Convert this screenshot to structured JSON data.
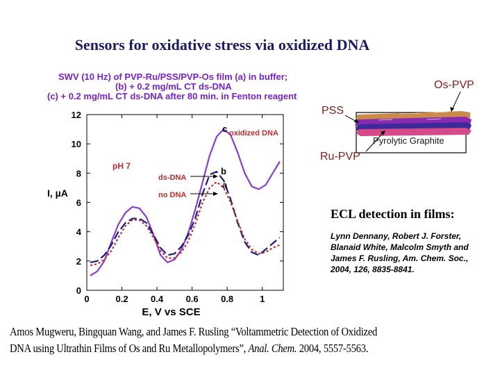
{
  "slide": {
    "title": "Sensors for oxidative stress via oxidized DNA"
  },
  "chart_title": {
    "line1": "SWV (10 Hz) of PVP-Ru/PSS/PVP-Os film (a) in buffer;",
    "line2": "(b)  + 0.2 mg/mL CT ds-DNA",
    "line3": "(c) + 0.2 mg/mL CT ds-DNA after 80 min. in Fenton reagent"
  },
  "chart_data": {
    "type": "line",
    "xlabel": "E, V vs SCE",
    "ylabel": "I, µA",
    "xlim": [
      0,
      1.12
    ],
    "ylim": [
      0,
      12
    ],
    "x_ticks": [
      "0",
      "0.2",
      "0.4",
      "0.6",
      "0.8",
      "1"
    ],
    "y_ticks": [
      "0",
      "2",
      "4",
      "6",
      "8",
      "10",
      "12"
    ],
    "grid": false,
    "series": [
      {
        "name": "oxidized DNA",
        "label": "c",
        "color": "#8a3ad6",
        "style": "solid",
        "x": [
          0.02,
          0.06,
          0.1,
          0.14,
          0.18,
          0.22,
          0.26,
          0.3,
          0.34,
          0.38,
          0.42,
          0.46,
          0.5,
          0.54,
          0.58,
          0.62,
          0.66,
          0.7,
          0.74,
          0.78,
          0.82,
          0.86,
          0.9,
          0.94,
          0.98,
          1.02,
          1.06,
          1.1
        ],
        "y": [
          1.0,
          1.3,
          2.0,
          3.3,
          4.5,
          5.3,
          5.7,
          5.6,
          5.0,
          3.8,
          2.4,
          1.9,
          2.1,
          2.8,
          4.0,
          5.6,
          7.4,
          9.2,
          10.5,
          11.0,
          10.6,
          9.4,
          8.0,
          7.1,
          6.9,
          7.2,
          8.0,
          8.8
        ]
      },
      {
        "name": "ds-DNA",
        "label": "b",
        "color": "#1a1a80",
        "style": "dashed",
        "x": [
          0.02,
          0.06,
          0.1,
          0.14,
          0.18,
          0.22,
          0.26,
          0.3,
          0.34,
          0.38,
          0.42,
          0.46,
          0.5,
          0.54,
          0.58,
          0.62,
          0.66,
          0.7,
          0.74,
          0.78,
          0.82,
          0.86,
          0.9,
          0.94,
          0.98,
          1.02,
          1.06,
          1.1
        ],
        "y": [
          1.9,
          2.0,
          2.4,
          3.1,
          4.0,
          4.6,
          4.9,
          4.9,
          4.6,
          3.8,
          2.9,
          2.4,
          2.5,
          3.0,
          3.8,
          5.0,
          6.6,
          7.9,
          8.1,
          7.5,
          6.2,
          4.6,
          3.3,
          2.6,
          2.4,
          2.8,
          3.2,
          3.6
        ]
      },
      {
        "name": "no DNA",
        "label": "a",
        "color": "#cc2a2a",
        "style": "dotted",
        "x": [
          0.02,
          0.06,
          0.1,
          0.14,
          0.18,
          0.22,
          0.26,
          0.3,
          0.34,
          0.38,
          0.42,
          0.46,
          0.5,
          0.54,
          0.58,
          0.62,
          0.66,
          0.7,
          0.74,
          0.78,
          0.82,
          0.86,
          0.9,
          0.94,
          0.98,
          1.02,
          1.06,
          1.1
        ],
        "y": [
          1.7,
          1.8,
          2.1,
          2.7,
          3.6,
          4.4,
          4.8,
          4.8,
          4.4,
          3.6,
          2.7,
          2.2,
          2.2,
          2.6,
          3.4,
          4.6,
          6.0,
          7.0,
          7.4,
          7.0,
          6.0,
          4.7,
          3.5,
          2.8,
          2.5,
          2.6,
          2.9,
          3.1
        ]
      }
    ],
    "annotations": {
      "ph": "pH 7",
      "ds_dna": "ds-DNA",
      "no_dna": "no DNA",
      "oxidized": "oxidized DNA",
      "label_c": "c",
      "label_b": "b",
      "label_a": "a"
    },
    "colors": {
      "annotation": "#cc2a2a",
      "axis": "#000000"
    }
  },
  "diagram": {
    "os_pvp": "Os-PVP",
    "pss": "PSS",
    "electrode": "Pyrolytic Graphite",
    "ru_pvp": "Ru-PVP",
    "label_color": "#8b1a1a",
    "layer_colors": [
      "#cc8a4a",
      "#8a2ab0",
      "#3a2a9a",
      "#d64a8a"
    ]
  },
  "ecl": {
    "heading": "ECL detection in films:",
    "authors": "Lynn Dennany, Robert J. Forster, Blanaid White, Malcolm Smyth and James F. Rusling, Am. Chem. Soc., 2004, 126, 8835-8841."
  },
  "citation": {
    "line1": "Amos Mugweru, Bingquan Wang, and James F. Rusling “Voltammetric Detection of Oxidized",
    "line2_a": "DNA using Ultrathin Films of Os and Ru Metallopolymers”, ",
    "line2_journal": "Anal. Chem.",
    "line2_b": " 2004,  5557-5563."
  }
}
